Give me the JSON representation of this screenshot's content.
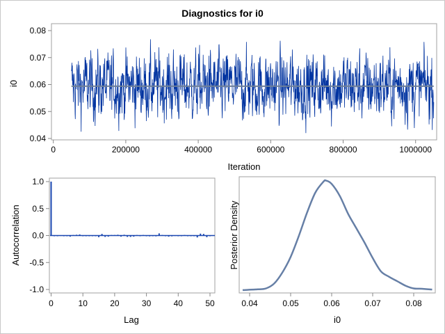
{
  "title": "Diagnostics for i0",
  "colors": {
    "trace": "#0033a0",
    "trace_light": "#5577bb",
    "mean_line": "#6d7f9a",
    "acf": "#1a47b0",
    "density": "#667fa6",
    "frame": "#a0a0a0"
  },
  "chart_data": [
    {
      "type": "line",
      "name": "trace",
      "xlabel": "Iteration",
      "ylabel": "i0",
      "xlim": [
        0,
        1050000
      ],
      "ylim": [
        0.04,
        0.082
      ],
      "xticks": [
        "0",
        "200000",
        "400000",
        "600000",
        "800000",
        "1000000"
      ],
      "yticks": [
        "0.04",
        "0.05",
        "0.06",
        "0.07",
        "0.08"
      ],
      "iteration_range": [
        50000,
        1050000
      ],
      "mean": 0.0594,
      "min": 0.0414,
      "max": 0.081
    },
    {
      "type": "bar",
      "name": "autocorrelation",
      "xlabel": "Lag",
      "ylabel": "Autocorrelation",
      "xlim": [
        0,
        51
      ],
      "ylim": [
        -1.05,
        1.05
      ],
      "xticks": [
        "0",
        "10",
        "20",
        "30",
        "40",
        "50"
      ],
      "yticks": [
        "-1.0",
        "-0.5",
        "0.0",
        "0.5",
        "1.0"
      ],
      "lags": [
        0,
        1,
        2,
        3,
        4,
        5,
        6,
        7,
        8,
        9,
        10,
        11,
        12,
        13,
        14,
        15,
        16,
        17,
        18,
        19,
        20,
        21,
        22,
        23,
        24,
        25,
        26,
        27,
        28,
        29,
        30,
        31,
        32,
        33,
        34,
        35,
        36,
        37,
        38,
        39,
        40,
        41,
        42,
        43,
        44,
        45,
        46,
        47,
        48,
        49,
        50
      ],
      "values": [
        1.0,
        0.0,
        -0.01,
        0.005,
        0.0,
        0.0,
        -0.02,
        0.01,
        0.015,
        0.02,
        0.0,
        0.0,
        -0.005,
        0.0,
        -0.01,
        -0.03,
        0.03,
        -0.025,
        -0.02,
        0.01,
        0.01,
        0.015,
        -0.02,
        0.015,
        -0.025,
        -0.025,
        -0.02,
        0.01,
        -0.005,
        0.01,
        0.0,
        -0.015,
        0.0,
        -0.015,
        0.04,
        0.01,
        -0.01,
        -0.02,
        -0.015,
        0.005,
        0.0,
        0.0,
        0.01,
        0.0,
        -0.005,
        0.0,
        -0.035,
        0.035,
        0.03,
        -0.03,
        0.0
      ]
    },
    {
      "type": "line",
      "name": "posterior-density",
      "xlabel": "i0",
      "ylabel": "Posterior Density",
      "xlim": [
        0.038,
        0.085
      ],
      "xticks": [
        "0.04",
        "0.05",
        "0.06",
        "0.07",
        "0.08"
      ],
      "x": [
        0.0383,
        0.042,
        0.044,
        0.046,
        0.048,
        0.05,
        0.052,
        0.054,
        0.056,
        0.058,
        0.0586,
        0.06,
        0.062,
        0.064,
        0.066,
        0.068,
        0.07,
        0.072,
        0.074,
        0.076,
        0.078,
        0.08,
        0.082,
        0.0845
      ],
      "density": [
        0.01,
        0.017,
        0.025,
        0.07,
        0.17,
        0.31,
        0.5,
        0.71,
        0.89,
        0.99,
        1.0,
        0.97,
        0.86,
        0.7,
        0.57,
        0.44,
        0.3,
        0.18,
        0.13,
        0.09,
        0.05,
        0.025,
        0.022,
        0.015
      ]
    }
  ]
}
